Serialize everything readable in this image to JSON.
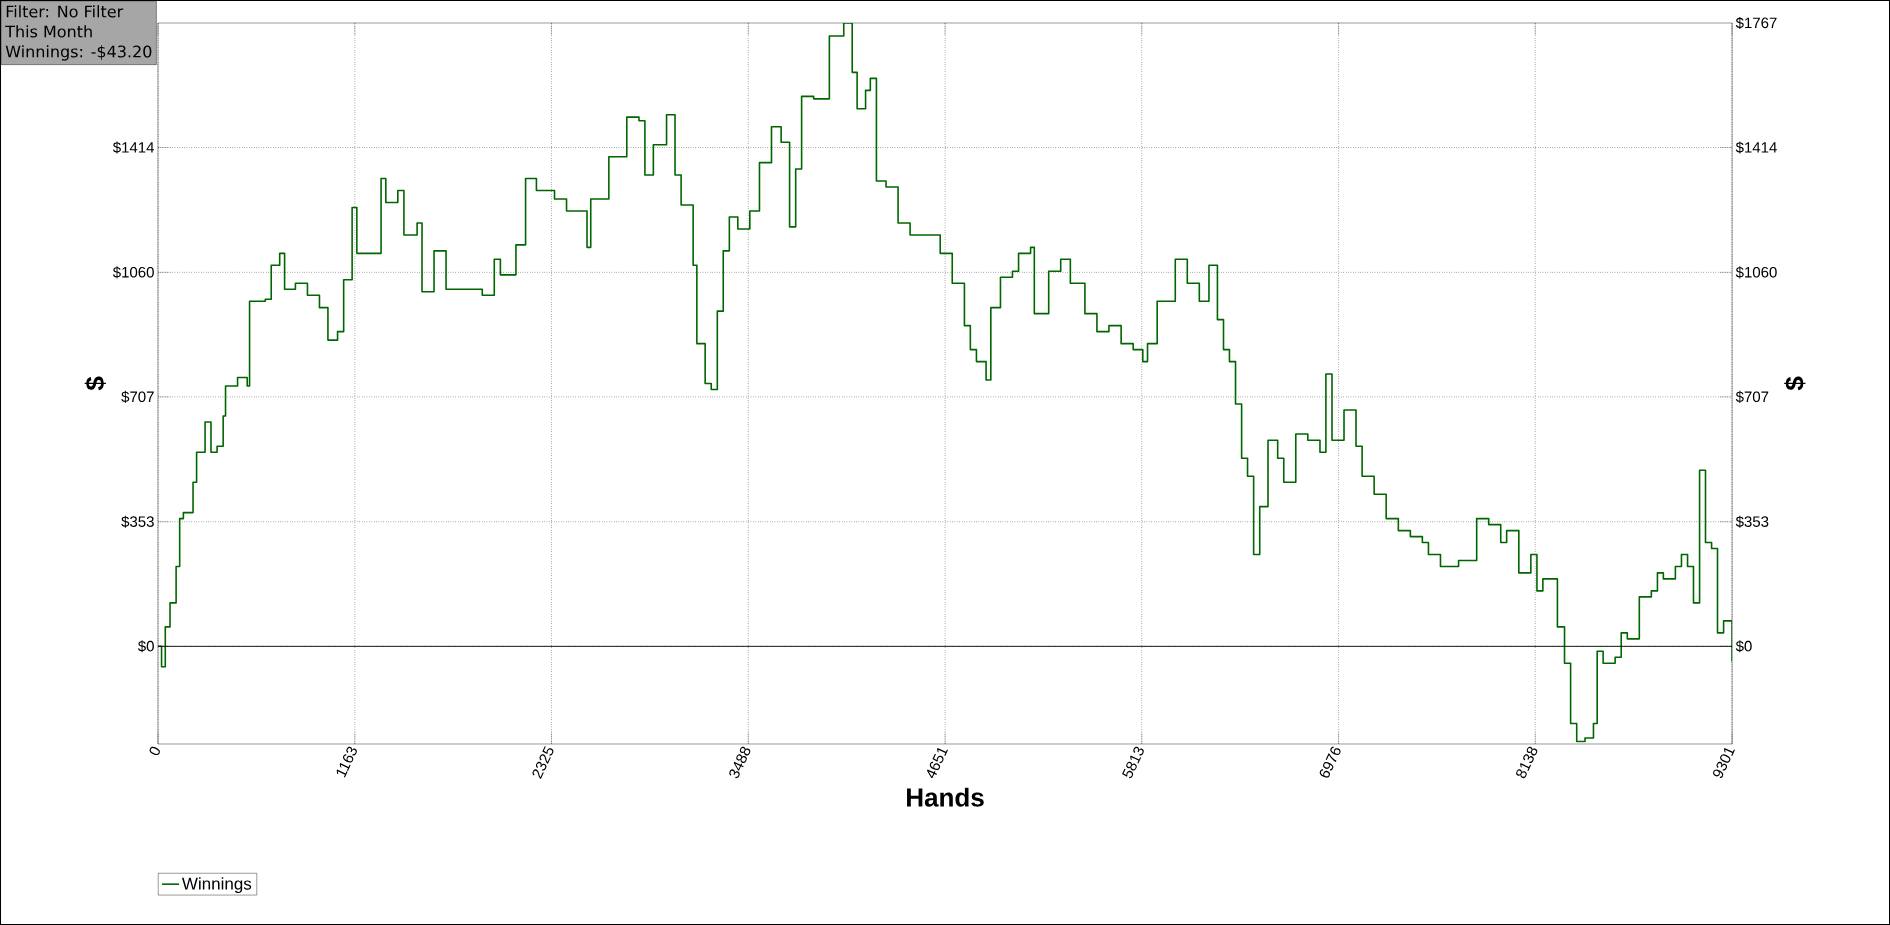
{
  "chart_data": {
    "type": "step",
    "xlabel": "Hands",
    "ylabel": "$",
    "y2label": "$",
    "annotations": [
      "Filter: No Filter",
      "This Month",
      "Winnings: -$43.20"
    ],
    "xlim": [
      0,
      9301
    ],
    "xticks": [
      0,
      1163,
      2325,
      3488,
      4651,
      5813,
      6976,
      8138,
      9301
    ],
    "ylim": [
      -277,
      1767
    ],
    "yticks": [
      {
        "value": 0,
        "label": "$0"
      },
      {
        "value": 353,
        "label": "$353"
      },
      {
        "value": 707,
        "label": "$707"
      },
      {
        "value": 1060,
        "label": "$1060"
      },
      {
        "value": 1414,
        "label": "$1414"
      }
    ],
    "y2lim": [
      -277,
      1767
    ],
    "y2ticks": [
      {
        "value": 0,
        "label": "$0"
      },
      {
        "value": 353,
        "label": "$353"
      },
      {
        "value": 707,
        "label": "$707"
      },
      {
        "value": 1060,
        "label": "$1060"
      },
      {
        "value": 1414,
        "label": "$1414"
      },
      {
        "value": 1767,
        "label": "$1767"
      }
    ],
    "grid": true,
    "legend": "bottom left",
    "marker": "none",
    "line_style": "solid",
    "ref_lines": [
      {
        "axis": "y",
        "value": 0,
        "color": "#000000"
      }
    ],
    "series": [
      {
        "name": "Winnings",
        "color": "#006600",
        "x": [
          0,
          21,
          43,
          71,
          107,
          128,
          150,
          207,
          228,
          278,
          313,
          349,
          385,
          399,
          470,
          527,
          541,
          634,
          669,
          719,
          748,
          812,
          883,
          954,
          1004,
          1061,
          1097,
          1147,
          1175,
          1261,
          1318,
          1346,
          1417,
          1453,
          1531,
          1560,
          1631,
          1674,
          1702,
          1809,
          1916,
          1987,
          2023,
          2115,
          2172,
          2236,
          2343,
          2414,
          2535,
          2557,
          2664,
          2770,
          2842,
          2877,
          2927,
          3005,
          3055,
          3091,
          3162,
          3184,
          3233,
          3269,
          3305,
          3340,
          3376,
          3426,
          3497,
          3554,
          3625,
          3682,
          3732,
          3768,
          3803,
          3874,
          3967,
          4017,
          4052,
          4102,
          4131,
          4181,
          4209,
          4245,
          4302,
          4373,
          4444,
          4537,
          4622,
          4693,
          4765,
          4800,
          4836,
          4893,
          4921,
          4978,
          5049,
          5085,
          5156,
          5178,
          5263,
          5334,
          5391,
          5477,
          5548,
          5619,
          5691,
          5762,
          5819,
          5847,
          5904,
          6011,
          6082,
          6153,
          6210,
          6260,
          6296,
          6331,
          6367,
          6403,
          6438,
          6474,
          6510,
          6559,
          6616,
          6652,
          6723,
          6794,
          6866,
          6901,
          6937,
          7008,
          7079,
          7115,
          7186,
          7257,
          7329,
          7400,
          7471,
          7507,
          7578,
          7613,
          7685,
          7792,
          7863,
          7934,
          7969,
          8041,
          8112,
          8148,
          8183,
          8269,
          8311,
          8347,
          8383,
          8432,
          8482,
          8504,
          8539,
          8610,
          8646,
          8682,
          8753,
          8824,
          8860,
          8895,
          8966,
          9002,
          9038,
          9073,
          9109,
          9144,
          9180,
          9215,
          9251,
          9272,
          9301
        ],
        "values": [
          0,
          -58,
          55,
          123,
          226,
          362,
          379,
          465,
          550,
          636,
          550,
          567,
          653,
          738,
          762,
          738,
          978,
          984,
          1080,
          1114,
          1012,
          1029,
          995,
          960,
          868,
          892,
          1039,
          1244,
          1114,
          1114,
          1326,
          1258,
          1292,
          1166,
          1200,
          1005,
          1121,
          1121,
          1012,
          1012,
          995,
          1097,
          1053,
          1138,
          1326,
          1292,
          1268,
          1234,
          1131,
          1268,
          1388,
          1500,
          1490,
          1336,
          1422,
          1507,
          1336,
          1251,
          1080,
          858,
          745,
          728,
          950,
          1121,
          1217,
          1183,
          1234,
          1371,
          1473,
          1429,
          1189,
          1353,
          1559,
          1552,
          1730,
          1730,
          1767,
          1627,
          1524,
          1576,
          1610,
          1319,
          1302,
          1200,
          1166,
          1166,
          1114,
          1029,
          909,
          841,
          807,
          755,
          960,
          1046,
          1063,
          1114,
          1131,
          943,
          1063,
          1097,
          1029,
          943,
          892,
          909,
          858,
          841,
          807,
          858,
          978,
          1097,
          1029,
          978,
          1080,
          926,
          841,
          807,
          687,
          533,
          482,
          260,
          396,
          584,
          533,
          465,
          602,
          584,
          550,
          772,
          584,
          670,
          567,
          482,
          431,
          362,
          328,
          311,
          294,
          260,
          226,
          226,
          243,
          362,
          345,
          294,
          328,
          208,
          260,
          157,
          191,
          55,
          -48,
          -219,
          -270,
          -260,
          -219,
          -14,
          -48,
          -31,
          38,
          21,
          140,
          157,
          208,
          191,
          226,
          260,
          226,
          123,
          499,
          294,
          277,
          38,
          72,
          72,
          -43
        ]
      }
    ]
  }
}
